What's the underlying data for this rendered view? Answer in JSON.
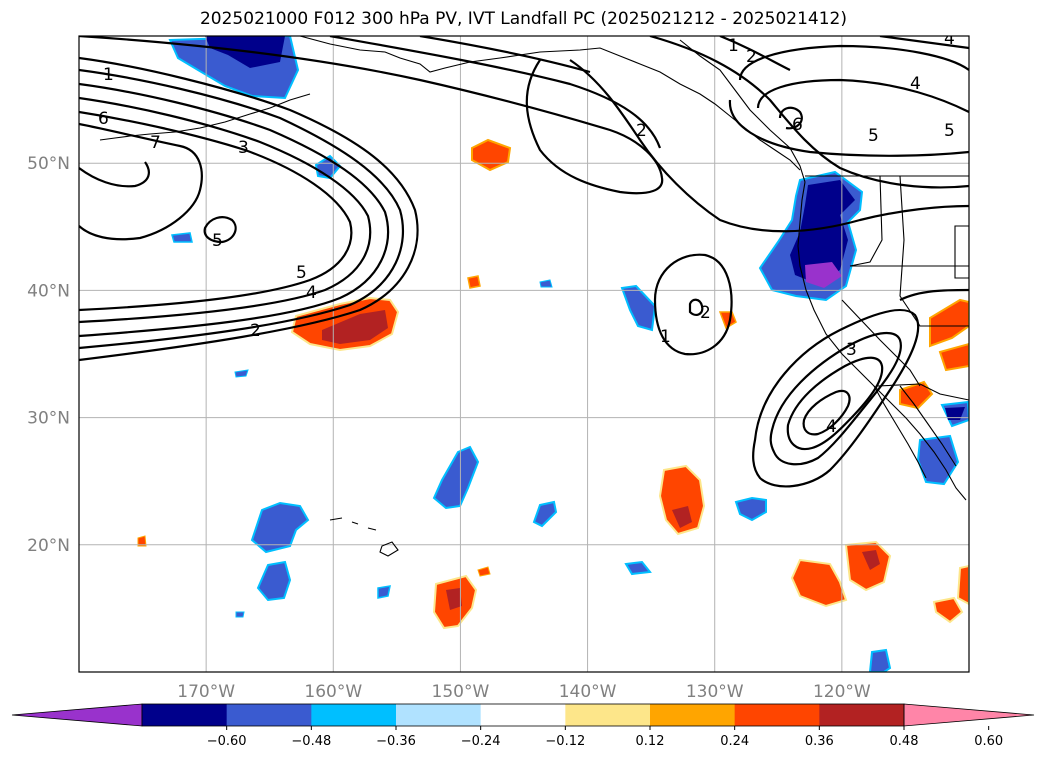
{
  "title": "2025021000 F012 300 hPa PV, IVT Landfall PC (2025021212 - 2025021412)",
  "map": {
    "projection": "PlateCarree",
    "lon_range": [
      -180,
      -110
    ],
    "lat_range": [
      10,
      60
    ],
    "lat_ticks": [
      {
        "value": 50,
        "label": "50°N"
      },
      {
        "value": 40,
        "label": "40°N"
      },
      {
        "value": 30,
        "label": "30°N"
      },
      {
        "value": 20,
        "label": "20°N"
      }
    ],
    "lon_ticks": [
      {
        "value": -170,
        "label": "170°W"
      },
      {
        "value": -160,
        "label": "160°W"
      },
      {
        "value": -150,
        "label": "150°W"
      },
      {
        "value": -140,
        "label": "140°W"
      },
      {
        "value": -130,
        "label": "130°W"
      },
      {
        "value": -120,
        "label": "120°W"
      }
    ],
    "gridlines": true,
    "coastlines": true,
    "contour_labels": [
      "1",
      "2",
      "3",
      "4",
      "5",
      "6",
      "7",
      "5",
      "2",
      "5",
      "4",
      "1",
      "2",
      "4",
      "5",
      "6",
      "1",
      "3",
      "4",
      "2"
    ]
  },
  "colorbar": {
    "orientation": "horizontal",
    "extend": "both",
    "levels": [
      -0.72,
      -0.6,
      -0.48,
      -0.36,
      -0.24,
      -0.12,
      0.12,
      0.24,
      0.36,
      0.48,
      0.6,
      0.72
    ],
    "colors": [
      "#9932cc",
      "#00008b",
      "#3a5bd0",
      "#00bfff",
      "#b0e2ff",
      "#ffffff",
      "#fde68a",
      "#ffa500",
      "#ff4500",
      "#b22222",
      "#ff85a8"
    ],
    "tick_labels": [
      "−0.60",
      "−0.48",
      "−0.36",
      "−0.24",
      "−0.12",
      "0.12",
      "0.24",
      "0.36",
      "0.48",
      "0.60"
    ]
  }
}
